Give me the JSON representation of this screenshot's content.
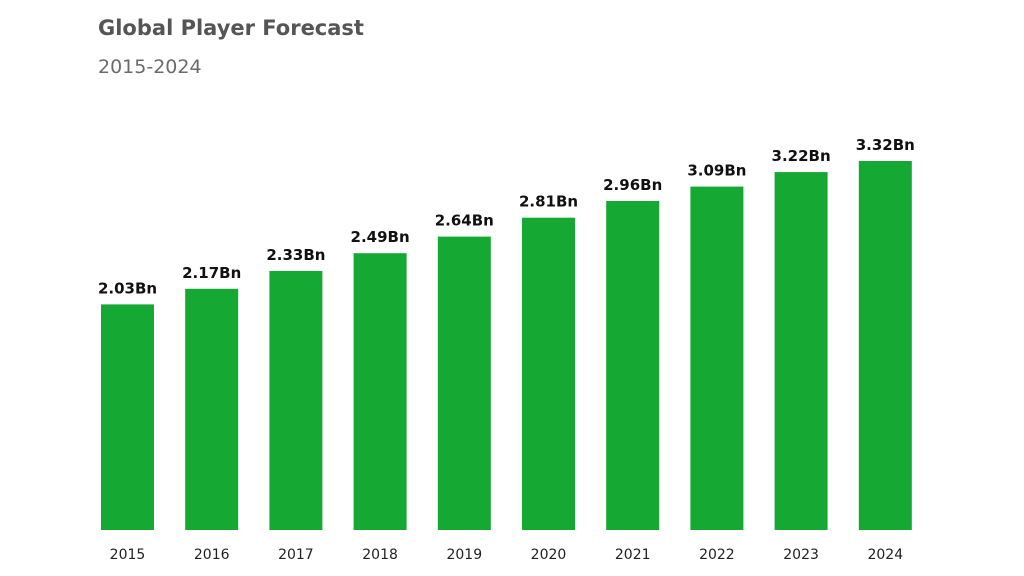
{
  "header": {
    "title": "Global Player Forecast",
    "subtitle": "2015-2024"
  },
  "colors": {
    "bar": "#15a832",
    "label": "#111111",
    "title": "#555555"
  },
  "chart_data": {
    "type": "bar",
    "title": "Global Player Forecast",
    "subtitle": "2015-2024",
    "xlabel": "",
    "ylabel": "",
    "categories": [
      "2015",
      "2016",
      "2017",
      "2018",
      "2019",
      "2020",
      "2021",
      "2022",
      "2023",
      "2024"
    ],
    "values": [
      2.03,
      2.17,
      2.33,
      2.49,
      2.64,
      2.81,
      2.96,
      3.09,
      3.22,
      3.32
    ],
    "value_labels": [
      "2.03Bn",
      "2.17Bn",
      "2.33Bn",
      "2.49Bn",
      "2.64Bn",
      "2.81Bn",
      "2.96Bn",
      "3.09Bn",
      "3.22Bn",
      "3.32Bn"
    ],
    "ylim": [
      0,
      3.32
    ],
    "grid": false,
    "legend": "none"
  }
}
